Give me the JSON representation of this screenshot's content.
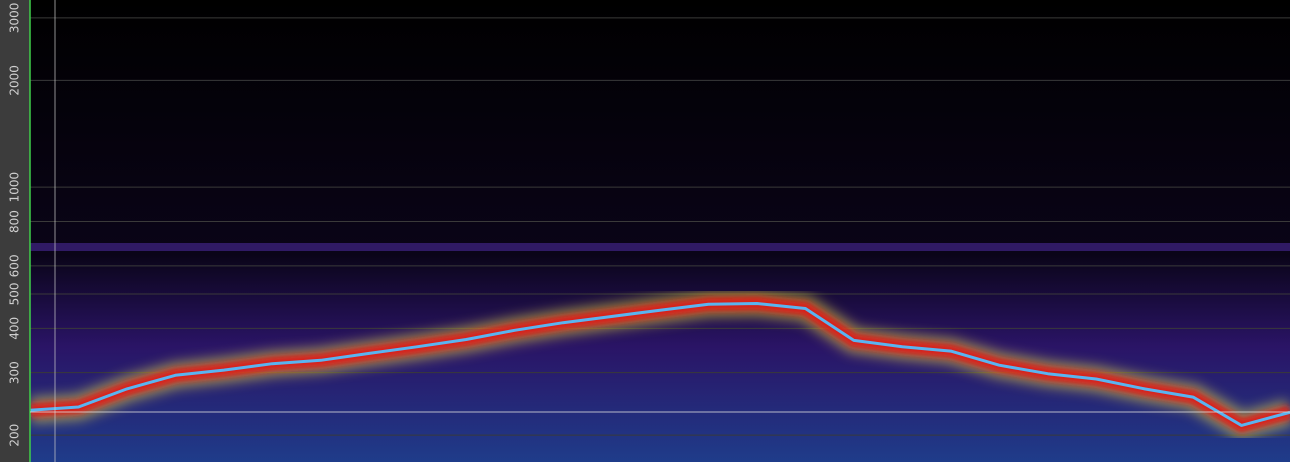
{
  "chart_data": {
    "type": "line",
    "scale": "log",
    "grid": true,
    "ylim": [
      168,
      3370
    ],
    "yticks": [
      200,
      300,
      400,
      500,
      600,
      800,
      1000,
      2000,
      3000
    ],
    "series": [
      {
        "color": "#5ab4f0",
        "values": [
          235,
          240,
          270,
          295,
          305,
          318,
          325,
          340,
          355,
          372,
          395,
          415,
          432,
          450,
          468,
          470,
          455,
          370,
          355,
          345,
          315,
          298,
          288,
          270,
          256,
          213,
          232
        ]
      }
    ]
  }
}
